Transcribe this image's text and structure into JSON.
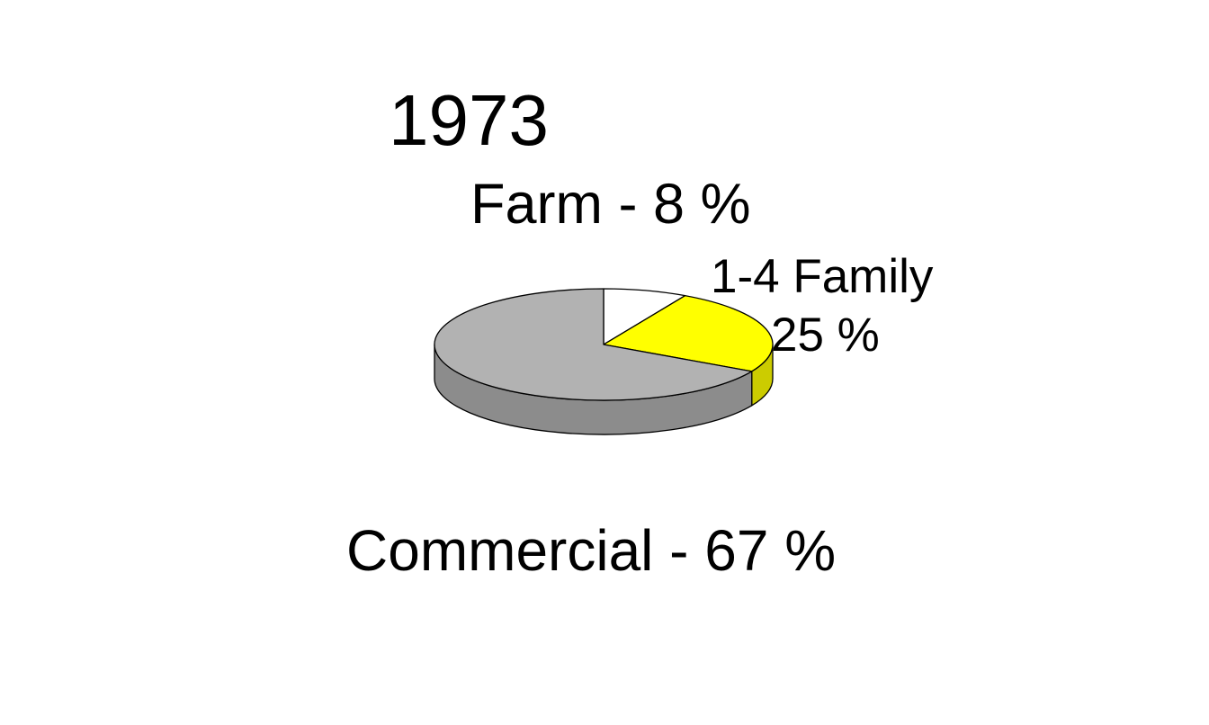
{
  "chart_data": {
    "type": "pie",
    "style": "3d",
    "title": "1973",
    "slices": [
      {
        "name": "Farm",
        "value": 8,
        "label": "Farm - 8 %",
        "color": "#ffffff"
      },
      {
        "name": "1-4 Family",
        "value": 25,
        "label_name": "1-4 Family",
        "label_value": "25 %",
        "color": "#ffff00",
        "side_color": "#cccc00"
      },
      {
        "name": "Commercial",
        "value": 67,
        "label": "Commercial - 67 %",
        "color": "#b2b2b2",
        "side_color": "#8c8c8c"
      }
    ],
    "legend": "none"
  }
}
